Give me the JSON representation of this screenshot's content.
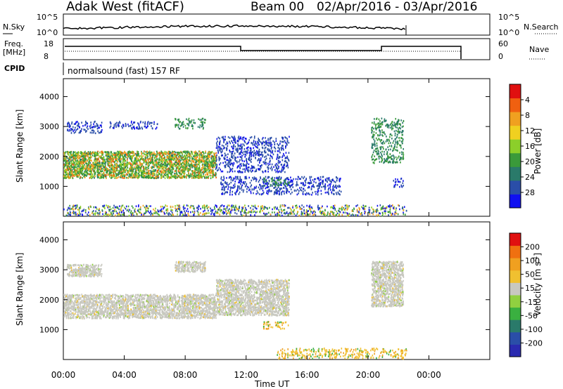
{
  "header": {
    "station": "Adak West (fitACF)",
    "beam": "Beam 00",
    "date_range": "02/Apr/2016 - 03/Apr/2016"
  },
  "strips": {
    "nsky_label": "N.Sky",
    "nsky_ticks": [
      "10^5",
      "10^0"
    ],
    "nsearch_label": "N.Search",
    "nsearch_ticks": [
      "10^5",
      "10^0"
    ],
    "freq_label_1": "Freq.",
    "freq_label_2": "[MHz]",
    "freq_ticks": [
      "18",
      "8"
    ],
    "nave_label": "Nave",
    "nave_ticks": [
      "60",
      "0"
    ],
    "cpid_label": "CPID",
    "cpid_text": "normalsound (fast) 157 RF"
  },
  "chart_data": [
    {
      "type": "heatmap",
      "name": "power-panel",
      "ylabel": "Slant Range [km]",
      "yticks": [
        "1000",
        "2000",
        "3000",
        "4000"
      ],
      "ylim": [
        0,
        4600
      ],
      "xlim_hours": [
        0,
        28
      ],
      "colorbar": {
        "label": "Power [dB]",
        "ticks": [
          "4",
          "8",
          "12",
          "16",
          "20",
          "24",
          "28"
        ],
        "range": [
          0,
          30
        ],
        "colors": [
          "#1010f0",
          "#2a4ea8",
          "#2a7a6a",
          "#3a9a3a",
          "#8ccf2a",
          "#f0d020",
          "#f0a020",
          "#f06010",
          "#e01010"
        ]
      },
      "regions": [
        {
          "t": [
            0,
            10
          ],
          "r": [
            1300,
            2200
          ],
          "desc": "strong band",
          "level": "high"
        },
        {
          "t": [
            0.2,
            2.5
          ],
          "r": [
            2800,
            3200
          ],
          "level": "low"
        },
        {
          "t": [
            3,
            6.2
          ],
          "r": [
            2950,
            3200
          ],
          "level": "low"
        },
        {
          "t": [
            7.3,
            9.3
          ],
          "r": [
            2950,
            3300
          ],
          "level": "mid"
        },
        {
          "t": [
            10,
            14.8
          ],
          "r": [
            1500,
            2700
          ],
          "level": "low"
        },
        {
          "t": [
            10.3,
            18.2
          ],
          "r": [
            750,
            1350
          ],
          "level": "low"
        },
        {
          "t": [
            13.1,
            14.8
          ],
          "r": [
            1050,
            1300
          ],
          "level": "mid"
        },
        {
          "t": [
            20.2,
            22.3
          ],
          "r": [
            1800,
            3300
          ],
          "level": "mid"
        },
        {
          "t": [
            21.6,
            22.3
          ],
          "r": [
            1000,
            1300
          ],
          "level": "low"
        },
        {
          "t": [
            0,
            22.5
          ],
          "r": [
            50,
            400
          ],
          "level": "scatter"
        }
      ]
    },
    {
      "type": "heatmap",
      "name": "velocity-panel",
      "ylabel": "Slant Range [km]",
      "yticks": [
        "1000",
        "2000",
        "3000",
        "4000"
      ],
      "ylim": [
        0,
        4600
      ],
      "xlim_hours": [
        0,
        28
      ],
      "xticks": [
        "00:00",
        "04:00",
        "08:00",
        "12:00",
        "16:00",
        "20:00",
        "00:00"
      ],
      "xlabel": "Time UT",
      "colorbar": {
        "label": "Velocity [m s-1]",
        "ticks": [
          "200",
          "100",
          "50",
          "15",
          "-15",
          "-50",
          "-100",
          "-200"
        ],
        "range": [
          -250,
          250
        ],
        "colors": [
          "#2a2ab0",
          "#2a4ea8",
          "#2a7a6a",
          "#3ab040",
          "#90d040",
          "#c8c8c0",
          "#f0c030",
          "#f0a020",
          "#f07010",
          "#e01010"
        ]
      },
      "regions": [
        {
          "t": [
            0,
            10
          ],
          "r": [
            1400,
            2200
          ],
          "desc": "ground scatter",
          "level": "gray"
        },
        {
          "t": [
            0.2,
            2.5
          ],
          "r": [
            2800,
            3200
          ],
          "level": "gray"
        },
        {
          "t": [
            7.3,
            9.3
          ],
          "r": [
            2950,
            3300
          ],
          "level": "gray"
        },
        {
          "t": [
            10,
            14.8
          ],
          "r": [
            1500,
            2700
          ],
          "level": "gray"
        },
        {
          "t": [
            13.1,
            14.8
          ],
          "r": [
            1050,
            1300
          ],
          "level": "yellow"
        },
        {
          "t": [
            20.2,
            22.3
          ],
          "r": [
            1800,
            3300
          ],
          "level": "gray"
        },
        {
          "t": [
            14,
            22.5
          ],
          "r": [
            50,
            400
          ],
          "level": "yellow"
        }
      ]
    }
  ]
}
